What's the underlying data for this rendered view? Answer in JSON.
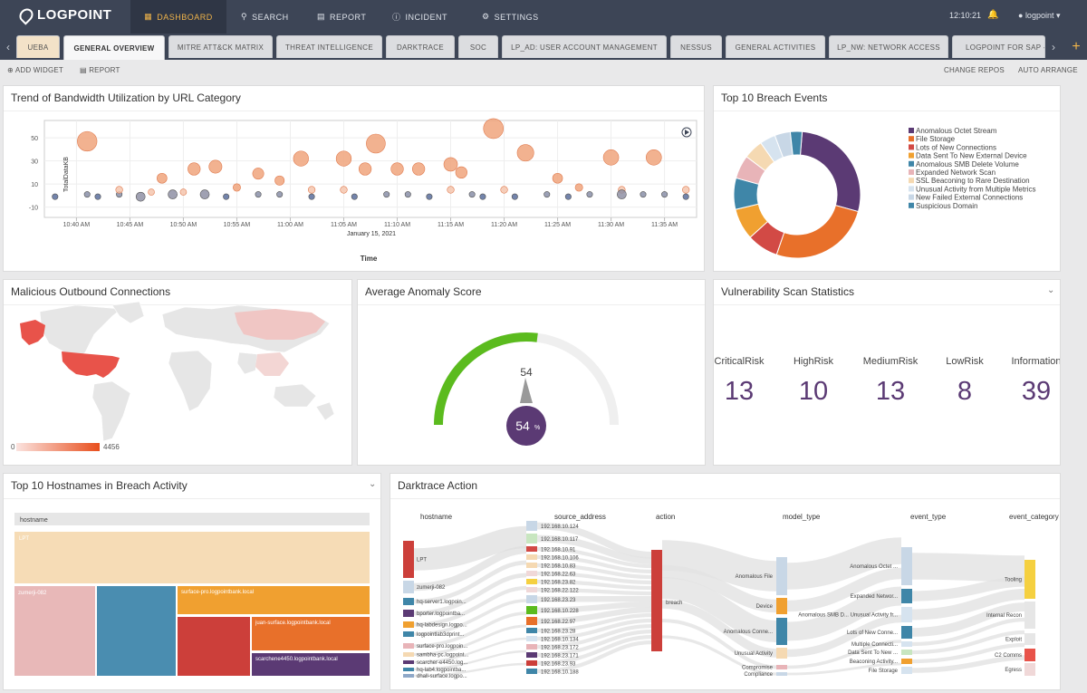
{
  "app": {
    "brand": "LOGPOINT"
  },
  "nav": {
    "dashboard": "DASHBOARD",
    "search": "SEARCH",
    "report": "REPORT",
    "incident": "INCIDENT",
    "settings": "SETTINGS",
    "time": "12:10:21",
    "user": "logpoint"
  },
  "tabs": [
    "UEBA",
    "GENERAL OVERVIEW",
    "MITRE ATT&CK MATRIX",
    "THREAT INTELLIGENCE",
    "DARKTRACE",
    "SOC",
    "LP_AD: USER ACCOUNT MANAGEMENT",
    "NESSUS",
    "GENERAL ACTIVITIES",
    "LP_NW: NETWORK ACCESS",
    "LOGPOINT FOR SAP - S"
  ],
  "toolbar": {
    "add_widget": "ADD WIDGET",
    "report": "REPORT",
    "change_repos": "CHANGE REPOS",
    "auto_arrange": "AUTO ARRANGE"
  },
  "colors": {
    "accent": "#f0b44a",
    "topbar": "#3d4556",
    "purple": "#5b3a74"
  },
  "panels": {
    "bandwidth": {
      "title": "Trend of Bandwidth Utilization by URL Category",
      "ylabel": "TotalDataKB",
      "xlabel": "Time",
      "date": "January 15, 2021",
      "yticks": [
        "50",
        "30",
        "10",
        "-10"
      ],
      "xticks": [
        "10:40 AM",
        "10:45 AM",
        "10:50 AM",
        "10:55 AM",
        "11:00 AM",
        "11:05 AM",
        "11:10 AM",
        "11:15 AM",
        "11:20 AM",
        "11:25 AM",
        "11:30 AM",
        "11:35 AM"
      ]
    },
    "breach": {
      "title": "Top 10 Breach Events"
    },
    "malicious": {
      "title": "Malicious Outbound Connections",
      "scale_min": "0",
      "scale_max": "4456"
    },
    "anomaly": {
      "title": "Average Anomaly Score",
      "value_label": "54",
      "percent": "54",
      "percent_sign": "%"
    },
    "vuln": {
      "title": "Vulnerability Scan Statistics",
      "stats": [
        {
          "label": "CriticalRisk",
          "value": "13"
        },
        {
          "label": "HighRisk",
          "value": "10"
        },
        {
          "label": "MediumRisk",
          "value": "13"
        },
        {
          "label": "LowRisk",
          "value": "8"
        },
        {
          "label": "Information",
          "value": "39"
        }
      ]
    },
    "hostnames": {
      "title": "Top 10 Hostnames in Breach Activity",
      "header": "hostname",
      "cells": [
        "LPT",
        "zumerji-082",
        "surface-pro.logpointbank.local",
        "juan-surface.logpointbank.local",
        "scarchene4450.logpointbank.local"
      ]
    },
    "darktrace": {
      "title": "Darktrace Action",
      "columns": [
        "hostname",
        "source_address",
        "action",
        "model_type",
        "event_type",
        "event_category"
      ],
      "hosts": [
        "LPT",
        "zumerji-082",
        "hq-server1.logpoin...",
        "bporter.logpointba...",
        "hq-labdesign.logpo...",
        "logpointlab3dprint...",
        "surface-pro.logpoin...",
        "sambha-pc.logpoint...",
        "scarcher-e4450.log...",
        "hq-lab4.logpointba...",
        "dhall-surface.logpo..."
      ],
      "ips": [
        "192.168.10.124",
        "192.168.10.117",
        "192.168.10.91",
        "192.168.10.106",
        "192.168.10.83",
        "192.168.22.63",
        "192.168.23.82",
        "192.168.22.122",
        "192.168.23.23",
        "192.168.10.228",
        "192.168.22.97",
        "192.168.23.28",
        "192.168.10.134",
        "192.168.23.172",
        "192.168.23.171",
        "192.168.23.93",
        "192.168.10.188"
      ],
      "action": "breach",
      "models": [
        "Anomalous File",
        "Device",
        "Anomalous Conne...",
        "Unusual Activity",
        "Compromise",
        "Compliance"
      ],
      "events": [
        "Anomalous Octet ...",
        "Expanded Networ...",
        "Anomalous SMB D... Unusual Activity fr...",
        "Lots of New Conne...",
        "Multiple Connecti...",
        "Data Sent To New ...",
        "Beaconing Activity...",
        "File Storage"
      ],
      "categories": [
        "Tooling",
        "Internal Recon",
        "Exploit",
        "C2 Comms",
        "Egress"
      ]
    }
  },
  "chart_data": [
    {
      "type": "scatter",
      "title": "Trend of Bandwidth Utilization by URL Category",
      "xlabel": "Time",
      "ylabel": "TotalDataKB",
      "x_caption": "January 15, 2021",
      "ylim": [
        -15,
        65
      ],
      "points": [
        {
          "x": "10:38",
          "y": -1
        },
        {
          "x": "10:41",
          "y": 47
        },
        {
          "x": "10:41",
          "y": 1
        },
        {
          "x": "10:42",
          "y": -1
        },
        {
          "x": "10:44",
          "y": 1
        },
        {
          "x": "10:44",
          "y": 5
        },
        {
          "x": "10:46",
          "y": -1
        },
        {
          "x": "10:47",
          "y": 3
        },
        {
          "x": "10:48",
          "y": 15
        },
        {
          "x": "10:49",
          "y": 1
        },
        {
          "x": "10:50",
          "y": 3
        },
        {
          "x": "10:51",
          "y": 23
        },
        {
          "x": "10:52",
          "y": 1
        },
        {
          "x": "10:53",
          "y": 25
        },
        {
          "x": "10:54",
          "y": -1
        },
        {
          "x": "10:55",
          "y": 7
        },
        {
          "x": "10:57",
          "y": 19
        },
        {
          "x": "10:57",
          "y": 1
        },
        {
          "x": "10:59",
          "y": 13
        },
        {
          "x": "10:59",
          "y": 1
        },
        {
          "x": "11:01",
          "y": 32
        },
        {
          "x": "11:02",
          "y": 5
        },
        {
          "x": "11:02",
          "y": -1
        },
        {
          "x": "11:05",
          "y": 32
        },
        {
          "x": "11:05",
          "y": 5
        },
        {
          "x": "11:06",
          "y": -1
        },
        {
          "x": "11:07",
          "y": 23
        },
        {
          "x": "11:08",
          "y": 45
        },
        {
          "x": "11:09",
          "y": 1
        },
        {
          "x": "11:10",
          "y": 23
        },
        {
          "x": "11:11",
          "y": 1
        },
        {
          "x": "11:12",
          "y": 23
        },
        {
          "x": "11:13",
          "y": -1
        },
        {
          "x": "11:15",
          "y": 27
        },
        {
          "x": "11:15",
          "y": 5
        },
        {
          "x": "11:16",
          "y": 20
        },
        {
          "x": "11:17",
          "y": 1
        },
        {
          "x": "11:18",
          "y": -1
        },
        {
          "x": "11:19",
          "y": 58
        },
        {
          "x": "11:20",
          "y": 5
        },
        {
          "x": "11:21",
          "y": -1
        },
        {
          "x": "11:22",
          "y": 37
        },
        {
          "x": "11:24",
          "y": 1
        },
        {
          "x": "11:25",
          "y": 15
        },
        {
          "x": "11:26",
          "y": -1
        },
        {
          "x": "11:27",
          "y": 7
        },
        {
          "x": "11:28",
          "y": 1
        },
        {
          "x": "11:30",
          "y": 33
        },
        {
          "x": "11:31",
          "y": 5
        },
        {
          "x": "11:31",
          "y": 1
        },
        {
          "x": "11:33",
          "y": 1
        },
        {
          "x": "11:34",
          "y": 33
        },
        {
          "x": "11:35",
          "y": 1
        },
        {
          "x": "11:37",
          "y": 5
        },
        {
          "x": "11:37",
          "y": -1
        }
      ]
    },
    {
      "type": "pie",
      "title": "Top 10 Breach Events",
      "labels": [
        "Anomalous Octet Stream",
        "File Storage",
        "Lots of New Connections",
        "Data Sent To New External Device",
        "Anomalous SMB Delete Volume",
        "Expanded Network Scan",
        "SSL Beaconing to Rare Destination",
        "Unusual Activity from Multiple Metrics",
        "New Failed External Connections",
        "Suspicious Domain"
      ],
      "values": [
        28,
        26,
        8,
        8,
        8,
        6,
        5,
        4,
        4,
        3
      ],
      "colors": [
        "#5b3a74",
        "#e8702a",
        "#d24a45",
        "#f0a030",
        "#3f86a8",
        "#e8b4b8",
        "#f5d9b2",
        "#d6e3ef",
        "#c8d7e6",
        "#3f86a8"
      ]
    },
    {
      "type": "gauge",
      "title": "Average Anomaly Score",
      "value": 54,
      "range": [
        0,
        100
      ]
    },
    {
      "type": "table",
      "title": "Vulnerability Scan Statistics",
      "columns": [
        "CriticalRisk",
        "HighRisk",
        "MediumRisk",
        "LowRisk",
        "Information"
      ],
      "values": [
        13,
        10,
        13,
        8,
        39
      ]
    }
  ]
}
